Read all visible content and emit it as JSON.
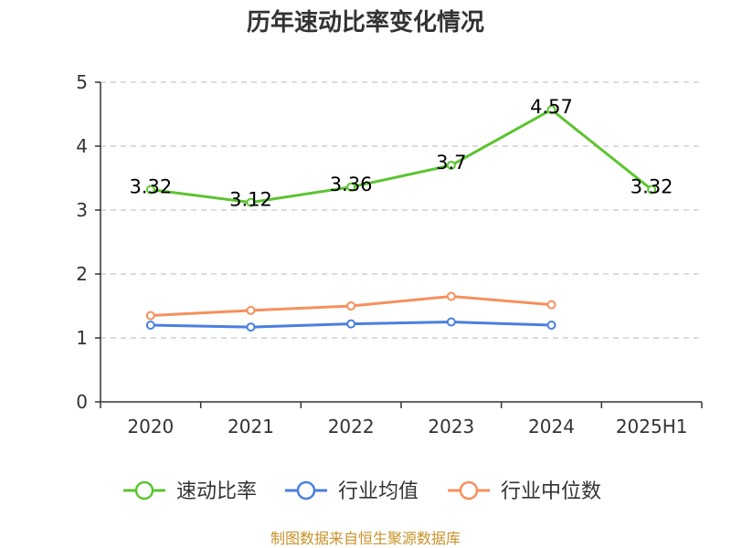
{
  "chart_data": {
    "type": "line",
    "title": "历年速动比率变化情况",
    "categories": [
      "2020",
      "2021",
      "2022",
      "2023",
      "2024",
      "2025H1"
    ],
    "ylim": [
      0,
      5
    ],
    "yticks": [
      0,
      1,
      2,
      3,
      4,
      5
    ],
    "grid": true,
    "legend_position": "bottom",
    "series": [
      {
        "name": "速动比率",
        "color": "#5cc430",
        "values": [
          3.32,
          3.12,
          3.36,
          3.7,
          4.57,
          3.32
        ],
        "labels": [
          "3.32",
          "3.12",
          "3.36",
          "3.7",
          "4.57",
          "3.32"
        ]
      },
      {
        "name": "行业均值",
        "color": "#4a7fe0",
        "values": [
          1.2,
          1.17,
          1.22,
          1.25,
          1.2,
          null
        ]
      },
      {
        "name": "行业中位数",
        "color": "#f5905c",
        "values": [
          1.35,
          1.43,
          1.5,
          1.65,
          1.52,
          null
        ]
      }
    ]
  },
  "footer": {
    "source": "制图数据来自恒生聚源数据库",
    "source_color": "#c8922a"
  }
}
